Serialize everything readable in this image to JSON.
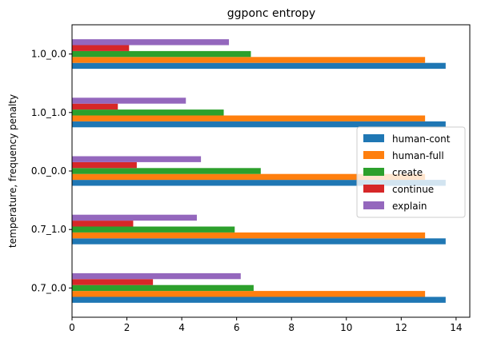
{
  "chart_data": {
    "type": "bar",
    "orientation": "horizontal",
    "title": "ggponc entropy",
    "xlabel": "",
    "ylabel": "temperature, frequency penalty",
    "categories": [
      "0.7_0.0",
      "0.7_1.0",
      "0.0_0.0",
      "1.0_1.0",
      "1.0_0.0"
    ],
    "xlim": [
      0,
      14.5
    ],
    "xticks": [
      0,
      2,
      4,
      6,
      8,
      10,
      12,
      14
    ],
    "grid": false,
    "legend_position": "center-right",
    "series": [
      {
        "name": "human-cont",
        "color": "#1f77b4",
        "values": [
          13.62,
          13.62,
          13.62,
          13.62,
          13.62
        ]
      },
      {
        "name": "human-full",
        "color": "#ff7f0e",
        "values": [
          12.87,
          12.87,
          12.87,
          12.87,
          12.87
        ]
      },
      {
        "name": "create",
        "color": "#2ca02c",
        "values": [
          6.62,
          5.93,
          6.88,
          5.53,
          6.52
        ]
      },
      {
        "name": "continue",
        "color": "#d62728",
        "values": [
          2.95,
          2.23,
          2.36,
          1.67,
          2.08
        ]
      },
      {
        "name": "explain",
        "color": "#9467bd",
        "values": [
          6.15,
          4.55,
          4.7,
          4.15,
          5.72
        ]
      }
    ]
  }
}
